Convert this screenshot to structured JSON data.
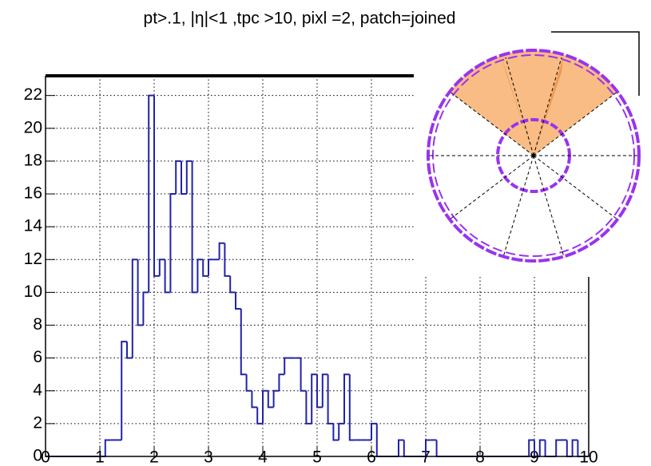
{
  "chart_data": {
    "type": "histogram",
    "title": "pt>.1, |η|<1 ,tpc >10, pixl =2, patch=joined",
    "bins": [
      0,
      0.1,
      0.2,
      0.3,
      0.4,
      0.5,
      0.6,
      0.7,
      0.8,
      0.9,
      1,
      1.1,
      1.2,
      1.3,
      1.4,
      1.5,
      1.6,
      1.7,
      1.8,
      1.9,
      2,
      2.1,
      2.2,
      2.3,
      2.4,
      2.5,
      2.6,
      2.7,
      2.8,
      2.9,
      3,
      3.1,
      3.2,
      3.3,
      3.4,
      3.5,
      3.6,
      3.7,
      3.8,
      3.9,
      4,
      4.1,
      4.2,
      4.3,
      4.4,
      4.5,
      4.6,
      4.7,
      4.8,
      4.9,
      5,
      5.1,
      5.2,
      5.3,
      5.4,
      5.5,
      5.6,
      5.7,
      5.8,
      5.9,
      6,
      6.1,
      6.2,
      6.3,
      6.4,
      6.5,
      6.6,
      6.7,
      6.8,
      6.9,
      7,
      7.1,
      7.2,
      7.3,
      7.4,
      7.5,
      7.6,
      7.7,
      7.8,
      7.9,
      8,
      8.1,
      8.2,
      8.3,
      8.4,
      8.5,
      8.6,
      8.7,
      8.8,
      8.9,
      9,
      9.1,
      9.2,
      9.3,
      9.4,
      9.5,
      9.6,
      9.7,
      9.8,
      9.9,
      10
    ],
    "values": [
      0,
      0,
      0,
      0,
      0,
      0,
      0,
      0,
      0,
      0,
      0,
      1,
      1,
      1,
      7,
      6,
      12,
      8,
      10,
      22,
      11,
      12,
      10,
      16,
      18,
      16,
      18,
      10,
      12,
      11,
      12,
      12,
      13,
      11,
      10,
      9,
      5,
      4,
      3,
      2,
      4,
      3,
      4,
      5,
      6,
      6,
      6,
      4,
      2,
      5,
      3,
      5,
      2,
      1,
      2,
      5,
      1,
      1,
      1,
      1,
      2,
      0,
      0,
      0,
      0,
      1,
      0,
      0,
      0,
      0,
      1,
      1,
      0,
      0,
      0,
      0,
      0,
      0,
      0,
      0,
      0,
      0,
      0,
      0,
      0,
      0,
      0,
      0,
      0,
      1,
      0,
      1,
      0,
      0,
      1,
      1,
      0,
      1,
      0,
      0
    ],
    "color": "#2222aa",
    "xlim": [
      0,
      10
    ],
    "xticks": [
      0,
      1,
      2,
      3,
      4,
      5,
      6,
      7,
      8,
      9,
      10
    ],
    "ylim": [
      0,
      23.2
    ],
    "yticks": [
      0,
      2,
      4,
      6,
      8,
      10,
      12,
      14,
      16,
      18,
      20,
      22
    ],
    "grid": true
  }
}
